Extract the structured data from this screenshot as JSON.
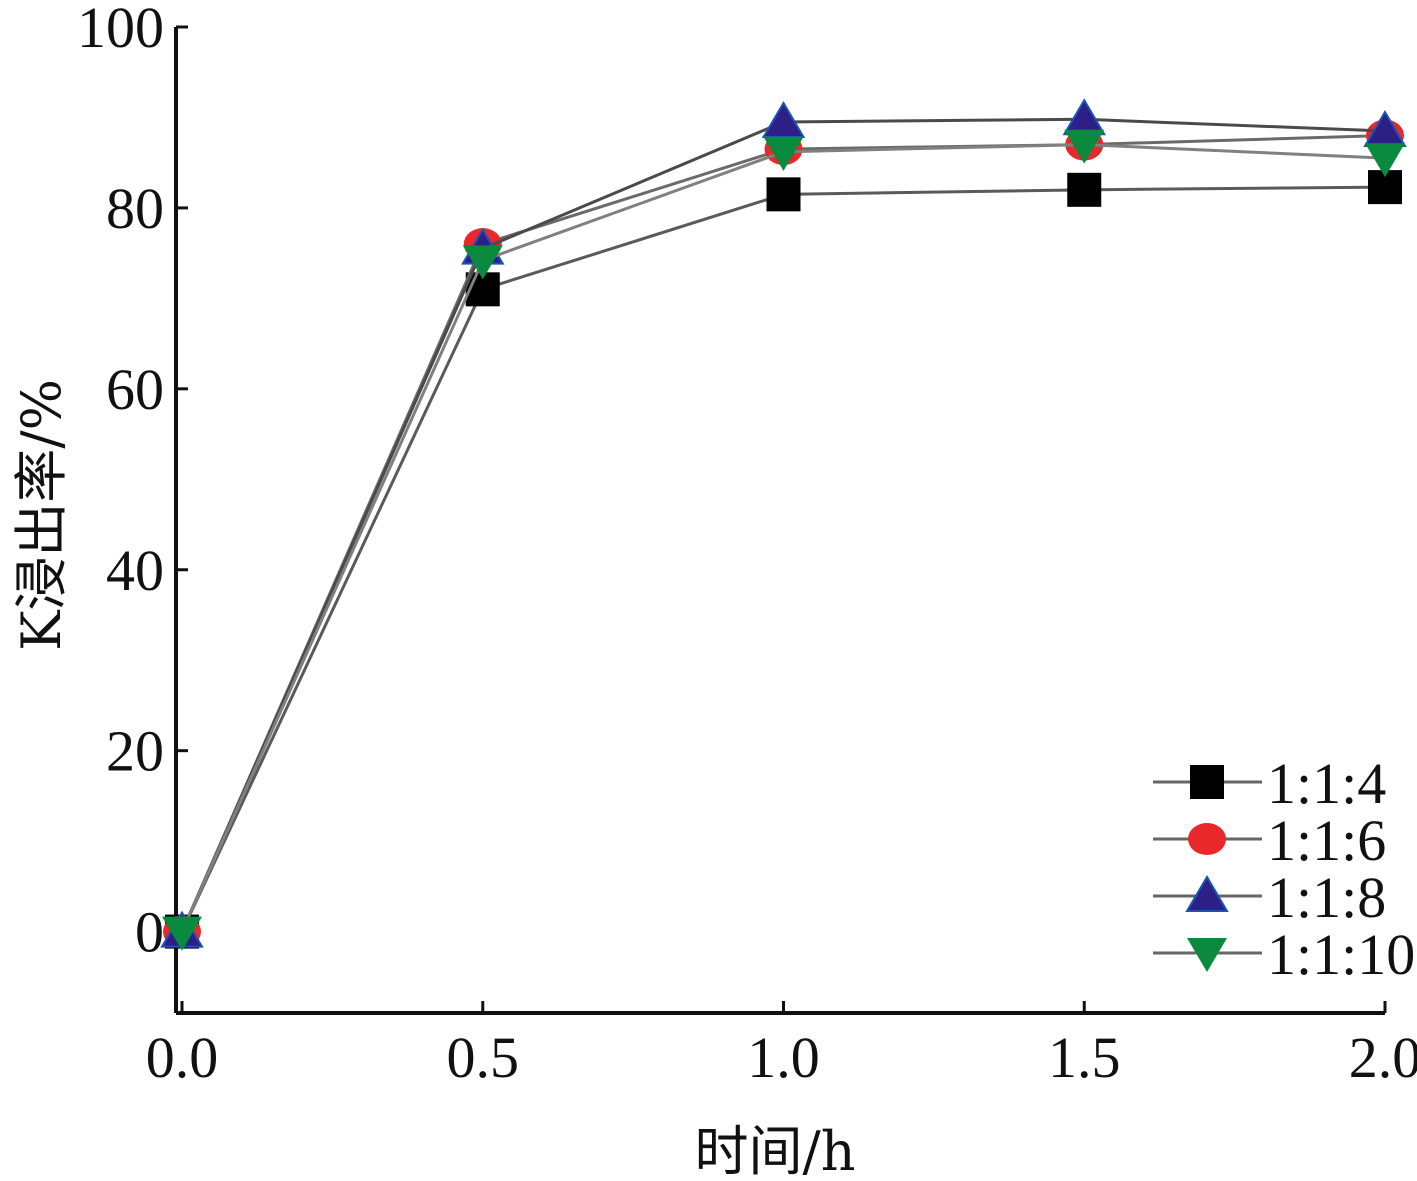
{
  "chart_data": {
    "type": "line",
    "title": "",
    "xlabel": "时间/h",
    "ylabel": "K浸出率/%",
    "x": [
      0.0,
      0.5,
      1.0,
      1.5,
      2.0
    ],
    "xticks": [
      "0.0",
      "0.5",
      "1.0",
      "1.5",
      "2.0"
    ],
    "yticks": [
      "0",
      "20",
      "40",
      "60",
      "80",
      "100"
    ],
    "xlim": [
      -0.01,
      2.0
    ],
    "ylim": [
      -9,
      100
    ],
    "grid": false,
    "legend_position": "bottom-right",
    "series": [
      {
        "name": "1:1:4",
        "values": [
          0,
          71,
          81.5,
          82,
          82.3
        ],
        "marker": "square",
        "color": "#000000"
      },
      {
        "name": "1:1:6",
        "values": [
          0,
          76,
          86.5,
          87,
          88
        ],
        "marker": "circle",
        "color": "#e8282b"
      },
      {
        "name": "1:1:8",
        "values": [
          0,
          75.5,
          89.5,
          89.8,
          88.5
        ],
        "marker": "triangle-up",
        "color": "#2e1f86"
      },
      {
        "name": "1:1:10",
        "values": [
          0,
          74.2,
          86.2,
          87,
          85.5
        ],
        "marker": "triangle-down",
        "color": "#0a8a3e"
      }
    ]
  }
}
